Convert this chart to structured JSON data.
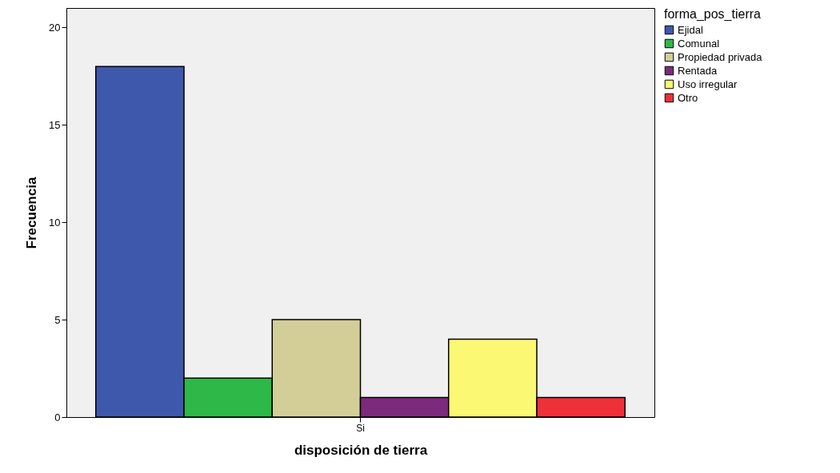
{
  "chart_data": {
    "type": "bar",
    "xlabel": "disposición de tierra",
    "ylabel": "Frecuencia",
    "legend_title": "forma_pos_tierra",
    "categories": [
      "Si"
    ],
    "series": [
      {
        "name": "Ejidal",
        "color": "#3e58ac",
        "values": [
          18
        ]
      },
      {
        "name": "Comunal",
        "color": "#2eb848",
        "values": [
          2
        ]
      },
      {
        "name": "Propiedad privada",
        "color": "#d3ce97",
        "values": [
          5
        ]
      },
      {
        "name": "Rentada",
        "color": "#7c2a7c",
        "values": [
          1
        ]
      },
      {
        "name": "Uso irregular",
        "color": "#fbf873",
        "values": [
          4
        ]
      },
      {
        "name": "Otro",
        "color": "#ef3038",
        "values": [
          1
        ]
      }
    ],
    "ylim": [
      0,
      21
    ],
    "yticks": [
      0,
      5,
      10,
      15,
      20
    ],
    "grid": false,
    "legend": "top right"
  }
}
